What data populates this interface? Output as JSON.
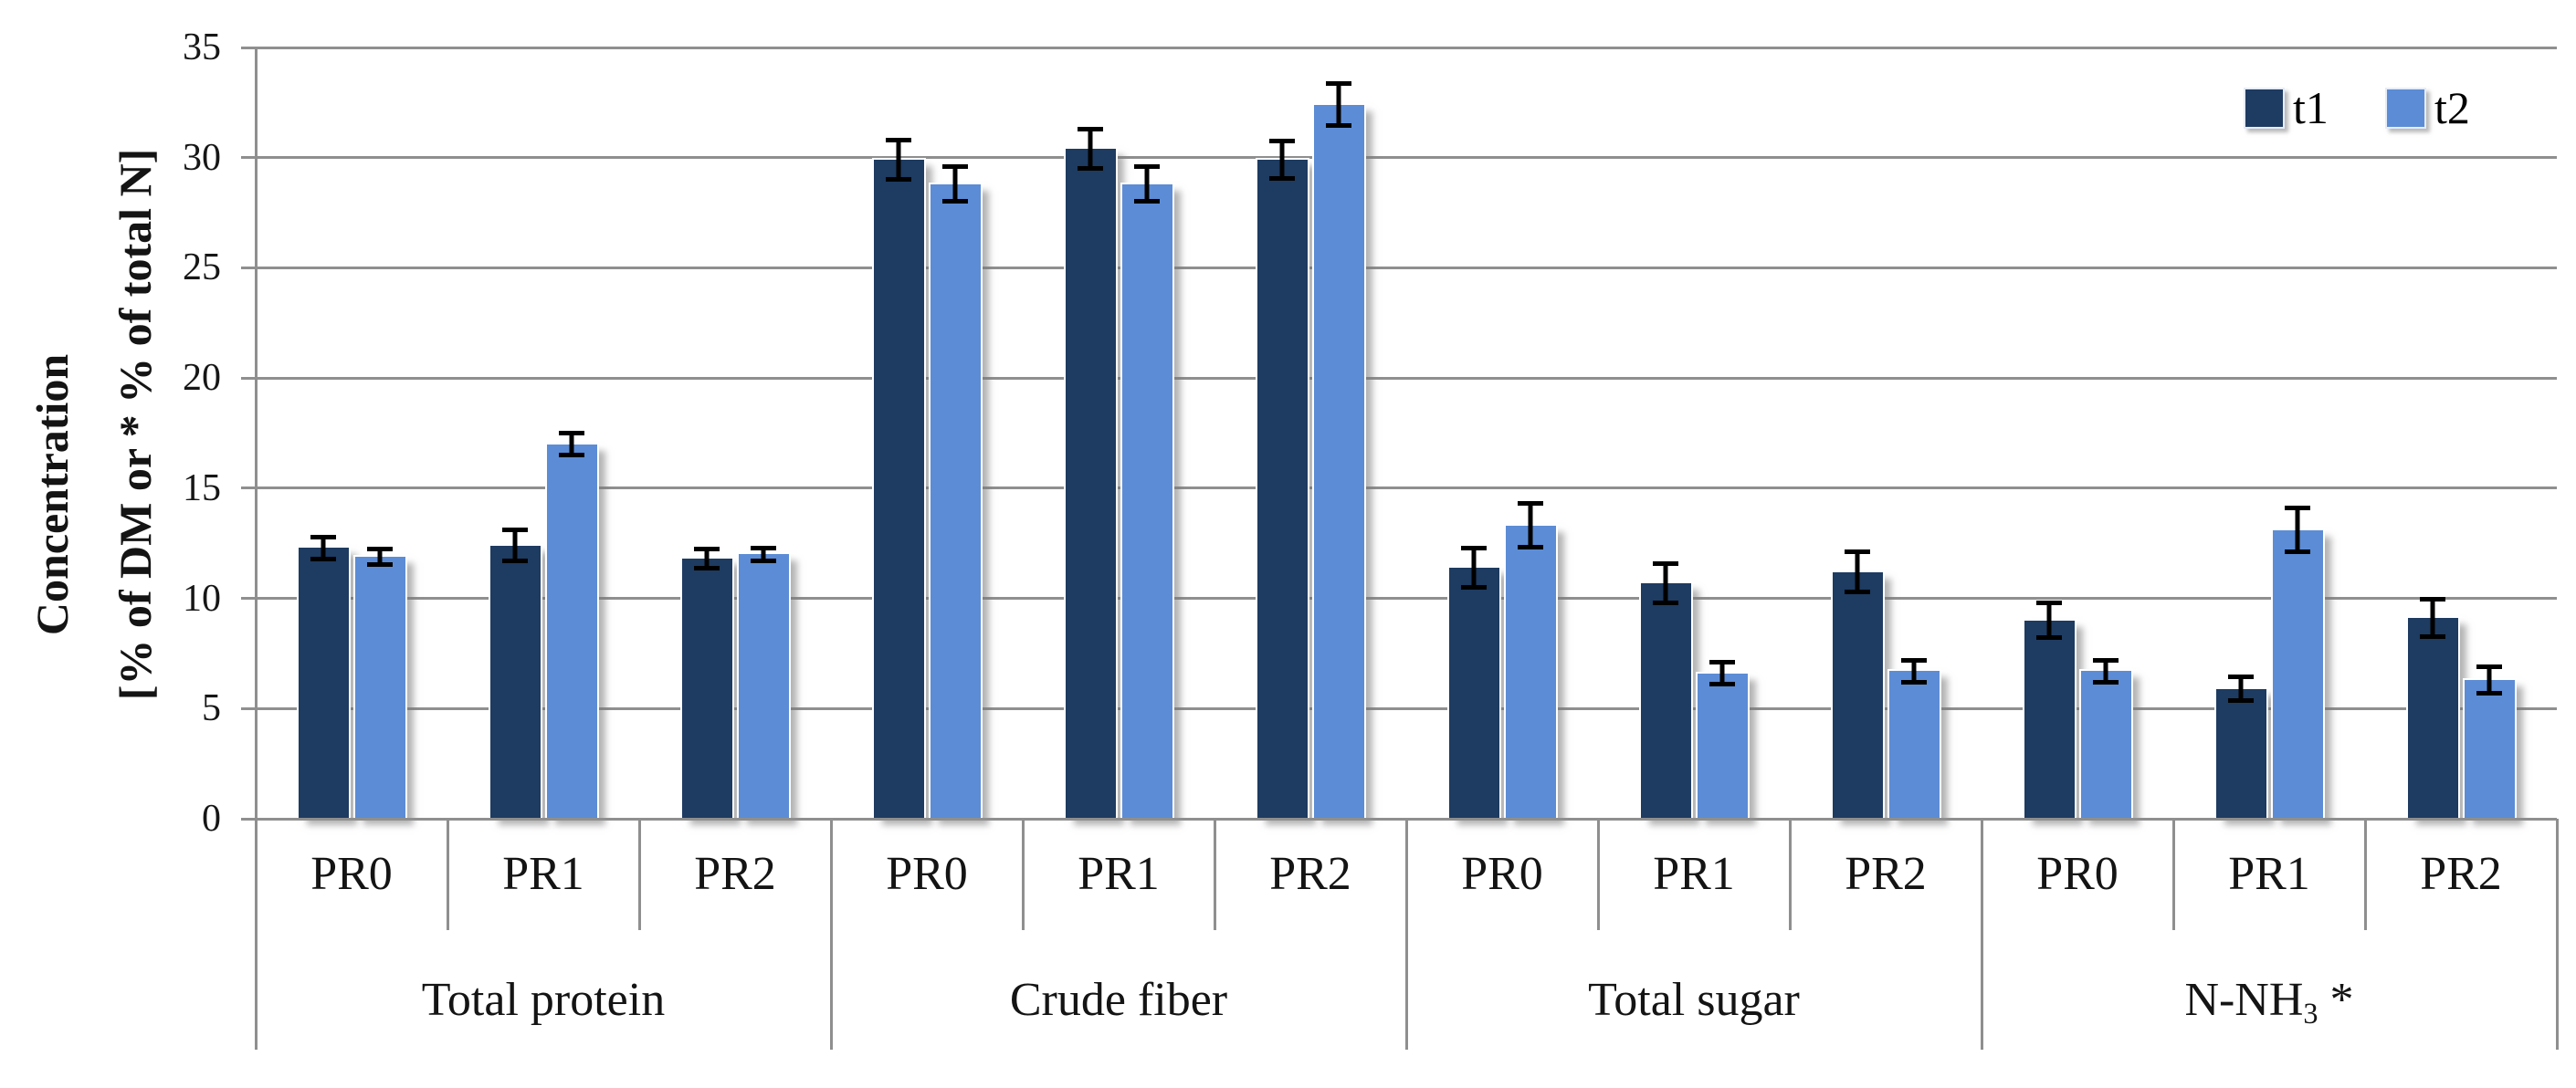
{
  "chart_data": {
    "type": "bar",
    "title": "",
    "ylabel_line1": "Concentration",
    "ylabel_line2": "[% of DM or * % of total N]",
    "ylim": [
      0,
      35
    ],
    "ytick_step": 5,
    "yticks": [
      35,
      30,
      25,
      20,
      15,
      10,
      5,
      0
    ],
    "grid": true,
    "legend": {
      "position": "top-right-inside",
      "items": [
        "t1",
        "t2"
      ]
    },
    "groups": [
      {
        "label": "Total protein"
      },
      {
        "label": "Crude fiber"
      },
      {
        "label": "Total sugar"
      },
      {
        "label": "N-NH",
        "sub": "3",
        "after": " *"
      }
    ],
    "categories": [
      "PR0",
      "PR1",
      "PR2"
    ],
    "series": [
      {
        "name": "t1",
        "color": "#1e3b61",
        "values": [
          [
            12.3,
            12.4,
            11.8
          ],
          [
            29.9,
            30.4,
            29.9
          ],
          [
            11.4,
            10.7,
            11.2
          ],
          [
            9.0,
            5.9,
            9.1
          ]
        ],
        "errors": [
          [
            0.6,
            0.8,
            0.55
          ],
          [
            1.0,
            1.0,
            0.95
          ],
          [
            1.0,
            1.0,
            1.0
          ],
          [
            0.9,
            0.65,
            0.95
          ]
        ]
      },
      {
        "name": "t2",
        "color": "#5c8cd5",
        "values": [
          [
            11.9,
            17.0,
            12.0
          ],
          [
            28.8,
            28.8,
            32.4
          ],
          [
            13.3,
            6.6,
            6.7
          ],
          [
            6.7,
            13.1,
            6.3
          ]
        ],
        "errors": [
          [
            0.45,
            0.6,
            0.4
          ],
          [
            0.9,
            0.9,
            1.05
          ],
          [
            1.1,
            0.6,
            0.6
          ],
          [
            0.6,
            1.1,
            0.7
          ]
        ]
      }
    ],
    "colors": {
      "grid": "#8f8f8f",
      "axis": "#8f8f8f",
      "error_bar": "#000000",
      "text": "#161616"
    }
  }
}
